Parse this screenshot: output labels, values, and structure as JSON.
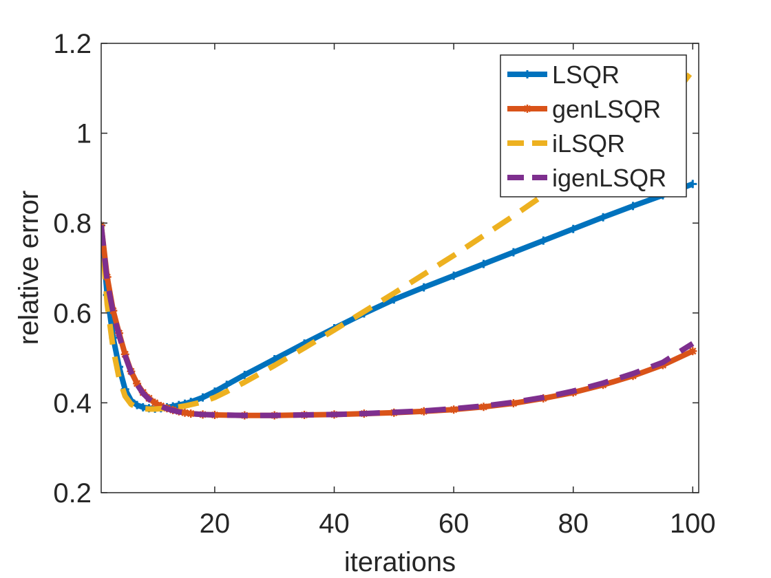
{
  "chart_data": {
    "type": "line",
    "title": "",
    "xlabel": "iterations",
    "ylabel": "relative error",
    "xlim": [
      1,
      101
    ],
    "ylim": [
      0.2,
      1.2
    ],
    "xticks": [
      20,
      40,
      60,
      80,
      100
    ],
    "xtick_labels": [
      "20",
      "40",
      "60",
      "80",
      "100"
    ],
    "yticks": [
      0.2,
      0.4,
      0.6,
      0.8,
      1.0,
      1.2
    ],
    "ytick_labels": [
      "0.2",
      "0.4",
      "0.6",
      "0.8",
      "1",
      "1.2"
    ],
    "grid": false,
    "legend_position": "top-right",
    "series": [
      {
        "name": "LSQR",
        "color": "#0072bd",
        "style": "solid",
        "marker": "plus",
        "x": [
          1,
          2,
          3,
          4,
          5,
          6,
          7,
          8,
          9,
          10,
          11,
          12,
          13,
          14,
          15,
          16,
          18,
          20,
          22,
          25,
          30,
          35,
          40,
          45,
          50,
          55,
          60,
          65,
          70,
          75,
          80,
          85,
          90,
          95,
          100
        ],
        "y": [
          0.795,
          0.64,
          0.545,
          0.48,
          0.43,
          0.405,
          0.395,
          0.39,
          0.388,
          0.387,
          0.388,
          0.39,
          0.392,
          0.395,
          0.398,
          0.402,
          0.412,
          0.425,
          0.44,
          0.462,
          0.497,
          0.532,
          0.566,
          0.599,
          0.63,
          0.657,
          0.683,
          0.709,
          0.735,
          0.761,
          0.787,
          0.813,
          0.838,
          0.862,
          0.887
        ]
      },
      {
        "name": "genLSQR",
        "color": "#d95319",
        "style": "solid",
        "marker": "star",
        "x": [
          1,
          2,
          3,
          4,
          5,
          6,
          7,
          8,
          9,
          10,
          11,
          12,
          13,
          14,
          15,
          16,
          18,
          20,
          25,
          30,
          35,
          40,
          45,
          50,
          55,
          60,
          65,
          70,
          75,
          80,
          85,
          90,
          95,
          100
        ],
        "y": [
          0.795,
          0.68,
          0.605,
          0.555,
          0.508,
          0.47,
          0.443,
          0.423,
          0.41,
          0.4,
          0.393,
          0.388,
          0.384,
          0.381,
          0.378,
          0.376,
          0.374,
          0.373,
          0.372,
          0.372,
          0.373,
          0.374,
          0.376,
          0.378,
          0.381,
          0.385,
          0.391,
          0.399,
          0.41,
          0.423,
          0.44,
          0.46,
          0.484,
          0.515
        ]
      },
      {
        "name": "iLSQR",
        "color": "#edb120",
        "style": "dashed",
        "marker": "none",
        "x": [
          1,
          2,
          3,
          4,
          5,
          6,
          7,
          8,
          9,
          10,
          11,
          12,
          13,
          14,
          15,
          16,
          18,
          20,
          22,
          25,
          30,
          35,
          40,
          45,
          50,
          55,
          60,
          65,
          70,
          75,
          80,
          85,
          90,
          95,
          100
        ],
        "y": [
          0.795,
          0.62,
          0.52,
          0.455,
          0.415,
          0.397,
          0.39,
          0.387,
          0.386,
          0.386,
          0.387,
          0.388,
          0.389,
          0.391,
          0.393,
          0.396,
          0.402,
          0.412,
          0.425,
          0.446,
          0.483,
          0.522,
          0.562,
          0.603,
          0.644,
          0.686,
          0.728,
          0.772,
          0.816,
          0.862,
          0.908,
          0.955,
          1.003,
          1.053,
          1.14
        ]
      },
      {
        "name": "igenLSQR",
        "color": "#7e2f8e",
        "style": "dashed",
        "marker": "none",
        "x": [
          1,
          2,
          3,
          4,
          5,
          6,
          7,
          8,
          9,
          10,
          11,
          12,
          13,
          14,
          15,
          16,
          18,
          20,
          25,
          30,
          35,
          40,
          45,
          50,
          55,
          60,
          65,
          70,
          75,
          80,
          85,
          90,
          95,
          100
        ],
        "y": [
          0.795,
          0.67,
          0.6,
          0.55,
          0.505,
          0.468,
          0.441,
          0.421,
          0.408,
          0.399,
          0.392,
          0.387,
          0.383,
          0.38,
          0.378,
          0.376,
          0.374,
          0.373,
          0.372,
          0.372,
          0.373,
          0.374,
          0.376,
          0.379,
          0.382,
          0.387,
          0.393,
          0.401,
          0.412,
          0.426,
          0.444,
          0.465,
          0.49,
          0.532
        ]
      }
    ]
  }
}
